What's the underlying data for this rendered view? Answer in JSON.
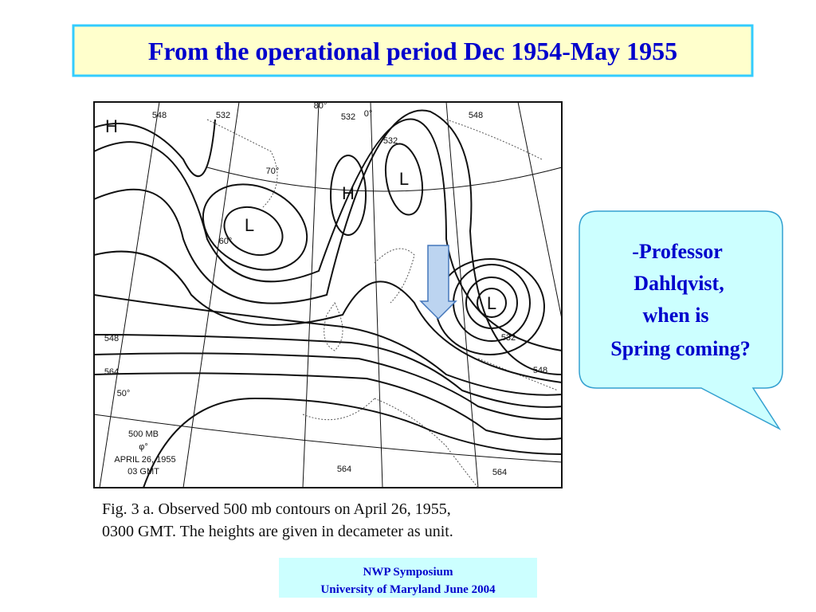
{
  "title": "From the operational period Dec 1954-May 1955",
  "map": {
    "centers": [
      "H",
      "L",
      "H",
      "L",
      "L"
    ],
    "contour_labels": [
      "548",
      "532",
      "532",
      "532",
      "548",
      "532",
      "548",
      "548",
      "564",
      "564",
      "564"
    ],
    "degree_labels": [
      "80°",
      "0°",
      "70°",
      "60°",
      "50°"
    ],
    "legend": [
      "500 MB",
      "φ°",
      "APRIL 26, 1955",
      "03 GMT"
    ]
  },
  "caption": [
    "Fig.  3 a.  Observed 500 mb contours on April 26, 1955,",
    "0300 GMT.  The heights are given in decameter as unit."
  ],
  "bubble": [
    "-Professor",
    "Dahlqvist,",
    "when is",
    "Spring coming?"
  ],
  "footer": [
    "NWP Symposium",
    "University of Maryland June 2004"
  ]
}
